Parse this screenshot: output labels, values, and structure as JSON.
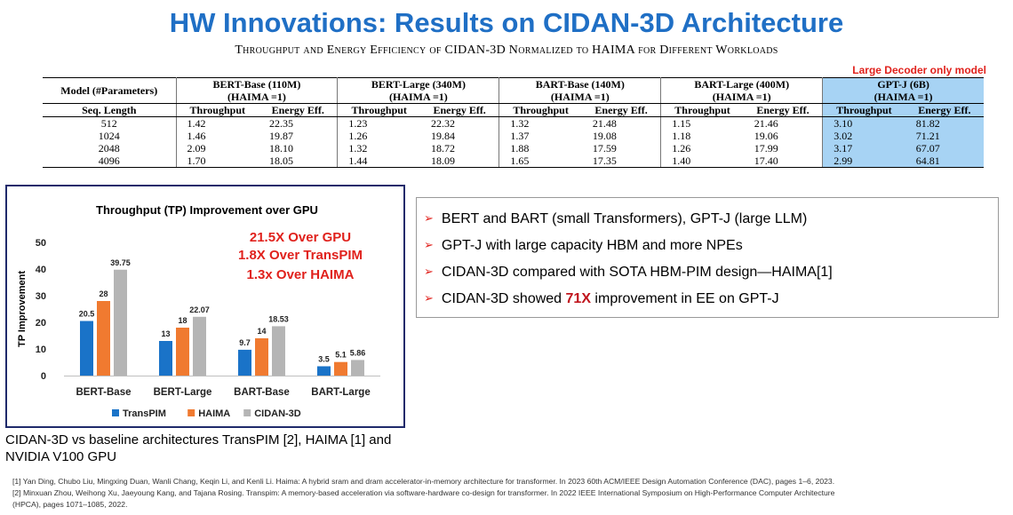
{
  "slide": {
    "title": "HW Innovations: Results on CIDAN-3D Architecture",
    "subtitle": "Throughput and Energy Efficiency of CIDAN-3D Normalized to HAIMA for Different Workloads",
    "decoder_note": "Large Decoder only model"
  },
  "table": {
    "model_header": "Model (#Parameters)",
    "seq_header": "Seq. Length",
    "models": [
      {
        "name": "BERT-Base (110M)",
        "norm": "(HAIMA =1)"
      },
      {
        "name": "BERT-Large (340M)",
        "norm": "(HAIMA =1)"
      },
      {
        "name": "BART-Base (140M)",
        "norm": "(HAIMA =1)"
      },
      {
        "name": "BART-Large (400M)",
        "norm": "(HAIMA =1)"
      },
      {
        "name": "GPT-J (6B)",
        "norm": "(HAIMA =1)"
      }
    ],
    "metric_tp": "Throughput",
    "metric_ee": "Energy Eff.",
    "rows": [
      {
        "len": "512",
        "vals": [
          "1.42",
          "22.35",
          "1.23",
          "22.32",
          "1.32",
          "21.48",
          "1.15",
          "21.46",
          "3.10",
          "81.82"
        ]
      },
      {
        "len": "1024",
        "vals": [
          "1.46",
          "19.87",
          "1.26",
          "19.84",
          "1.37",
          "19.08",
          "1.18",
          "19.06",
          "3.02",
          "71.21"
        ]
      },
      {
        "len": "2048",
        "vals": [
          "2.09",
          "18.10",
          "1.32",
          "18.72",
          "1.88",
          "17.59",
          "1.26",
          "17.99",
          "3.17",
          "67.07"
        ]
      },
      {
        "len": "4096",
        "vals": [
          "1.70",
          "18.05",
          "1.44",
          "18.09",
          "1.65",
          "17.35",
          "1.40",
          "17.40",
          "2.99",
          "64.81"
        ]
      }
    ]
  },
  "chart_data": {
    "type": "bar",
    "title": "Throughput (TP) Improvement over GPU",
    "ylabel": "TP Improvement",
    "xlabel": "",
    "ylim": [
      0,
      50
    ],
    "yticks": [
      0,
      10,
      20,
      30,
      40,
      50
    ],
    "categories": [
      "BERT-Base",
      "BERT-Large",
      "BART-Base",
      "BART-Large"
    ],
    "series": [
      {
        "name": "TransPIM",
        "color": "#1a73c8",
        "values": [
          20.5,
          13,
          9.7,
          3.5
        ],
        "labels": [
          "20.5",
          "13",
          "9.7",
          "3.5"
        ]
      },
      {
        "name": "HAIMA",
        "color": "#f07a30",
        "values": [
          28,
          18,
          14,
          5.1
        ],
        "labels": [
          "28",
          "18",
          "14",
          "5.1"
        ]
      },
      {
        "name": "CIDAN-3D",
        "color": "#b5b5b5",
        "values": [
          39.75,
          22.07,
          18.53,
          5.86
        ],
        "labels": [
          "39.75",
          "22.07",
          "18.53",
          "5.86"
        ]
      }
    ],
    "legend_position": "bottom",
    "annotations": [
      "21.5X Over GPU",
      "1.8X Over TransPIM",
      "1.3x Over HAIMA"
    ],
    "annotation_color": "#e0211c",
    "grid": false
  },
  "caption": "CIDAN-3D vs baseline architectures TransPIM [2], HAIMA [1] and NVIDIA V100 GPU",
  "bullets": {
    "items": [
      {
        "text": "BERT and  BART (small Transformers), GPT-J (large LLM)"
      },
      {
        "text": "GPT-J with  large capacity HBM and more NPEs"
      },
      {
        "text": "CIDAN-3D compared with SOTA HBM-PIM design—HAIMA[1]"
      },
      {
        "pre": "CIDAN-3D showed ",
        "hot": "71X",
        "post": " improvement in EE on GPT-J"
      }
    ],
    "arrow_icon": "➢"
  },
  "references": [
    "[1] Yan Ding, Chubo Liu, Mingxing Duan, Wanli Chang, Keqin Li, and Kenli Li. Haima: A hybrid sram and dram accelerator-in-memory architecture for transformer.  In 2023 60th ACM/IEEE Design Automation Conference (DAC), pages 1–6, 2023.",
    "[2] Minxuan Zhou, Weihong Xu, Jaeyoung Kang, and Tajana Rosing. Transpim: A memory-based acceleration via software-hardware co-design for transformer. In 2022 IEEE International Symposium on High-Performance Computer Architecture",
    "(HPCA), pages 1071–1085, 2022."
  ],
  "colors": {
    "title": "#1f6fc5",
    "highlight_column": "#a7d3f4",
    "chart_border": "#1f2a6b"
  }
}
